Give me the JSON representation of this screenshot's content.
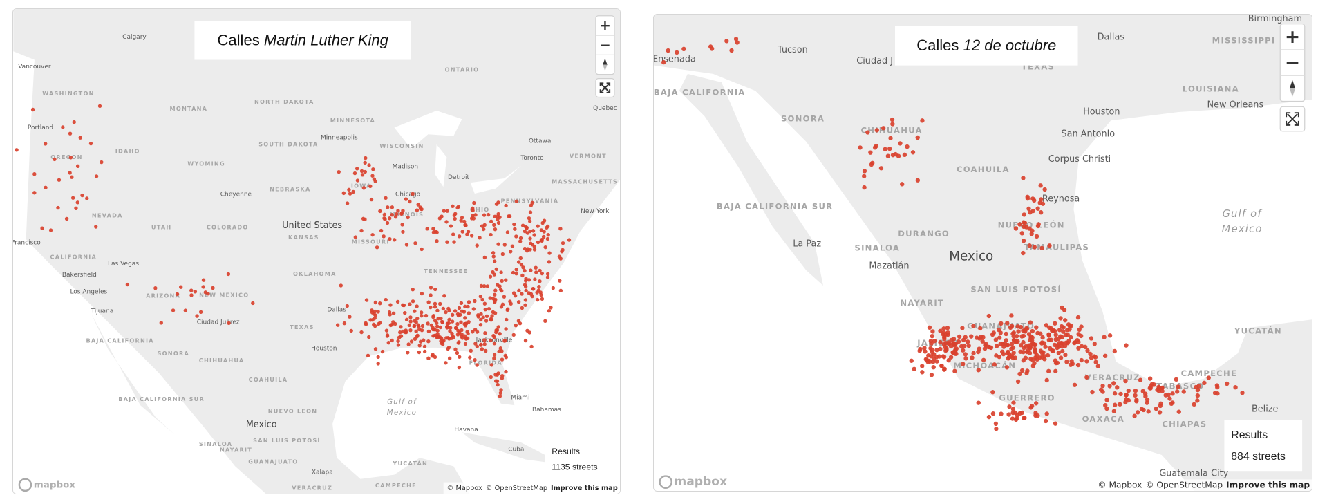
{
  "panels": [
    {
      "title": {
        "prefix": "Calles",
        "emphasis": "Martin Luther King"
      },
      "zoom_in": "+",
      "zoom_out": "−",
      "results": {
        "label": "Results",
        "value": "1135 streets"
      },
      "attribution": {
        "mapbox": "© Mapbox",
        "osm": "© OpenStreetMap",
        "improve": "Improve this map"
      },
      "logo": "mapbox",
      "places": [
        "Calgary",
        "Vancouver",
        "WASHINGTON",
        "MONTANA",
        "NORTH DAKOTA",
        "ONTARIO",
        "Quebec",
        "Portland",
        "OREGON",
        "IDAHO",
        "WYOMING",
        "SOUTH DAKOTA",
        "MINNESOTA",
        "Minneapolis",
        "WISCONSIN",
        "Ottawa",
        "Toronto",
        "VERMONT",
        "Madison",
        "Detroit",
        "MASSACHUSETTS",
        "Cheyenne",
        "NEBRASKA",
        "IOWA",
        "Chicago",
        "PENNSYLVANIA",
        "New York",
        "NEVADA",
        "UTAH",
        "COLORADO",
        "United States",
        "KANSAS",
        "MISSOURI",
        "ILLINOIS",
        "OHIO",
        "Francisco",
        "CALIFORNIA",
        "Las Vegas",
        "Bakersfield",
        "Los Angeles",
        "ARIZONA",
        "NEW MEXICO",
        "OKLAHOMA",
        "TENNESSEE",
        "Tijuana",
        "Ciudad Juárez",
        "TEXAS",
        "Dallas",
        "Houston",
        "Jacksonville",
        "FLORIDA",
        "BAJA CALIFORNIA",
        "SONORA",
        "CHIHUAHUA",
        "COAHUILA",
        "Gulf of",
        "Mexico",
        "Miami",
        "Bahamas",
        "BAJA CALIFORNIA SUR",
        "Mexico",
        "NUEVO LEON",
        "SINALOA",
        "Havana",
        "Cuba",
        "NAYARIT",
        "SAN LUIS POTOSÍ",
        "GUANAJUATO",
        "YUCATÁN",
        "Xalapa",
        "CAMPECHE",
        "VERACRUZ"
      ]
    },
    {
      "title": {
        "prefix": "Calles",
        "emphasis": "12 de octubre"
      },
      "zoom_in": "+",
      "zoom_out": "−",
      "results": {
        "label": "Results",
        "value": "884 streets"
      },
      "attribution": {
        "mapbox": "© Mapbox",
        "osm": "© OpenStreetMap",
        "improve": "Improve this map"
      },
      "logo": "mapbox",
      "places": [
        "Birmingham",
        "Dallas",
        "MISSISSIPPI",
        "Tucson",
        "Ensenada",
        "Ciudad J",
        "TEXAS",
        "LOUISIANA",
        "BAJA CALIFORNIA",
        "Houston",
        "New Orleans",
        "SONORA",
        "San Antonio",
        "CHIHUAHUA",
        "Corpus Christi",
        "COAHUILA",
        "BAJA CALIFORNIA SUR",
        "Reynosa",
        "NUEVO LEÓN",
        "Gulf of",
        "Mexico",
        "DURANGO",
        "TAMAULIPAS",
        "La Paz",
        "SINALOA",
        "Mexico",
        "Mazatlán",
        "SAN LUIS POTOSÍ",
        "NAYARIT",
        "YUCATÁN",
        "GUANAJUATO",
        "JALISCO",
        "MICHOACÁN",
        "CAMPECHE",
        "VERACRUZ",
        "TABASCO",
        "GUERRERO",
        "Belize",
        "OAXACA",
        "CHIAPAS",
        "Guatemala City"
      ]
    }
  ]
}
